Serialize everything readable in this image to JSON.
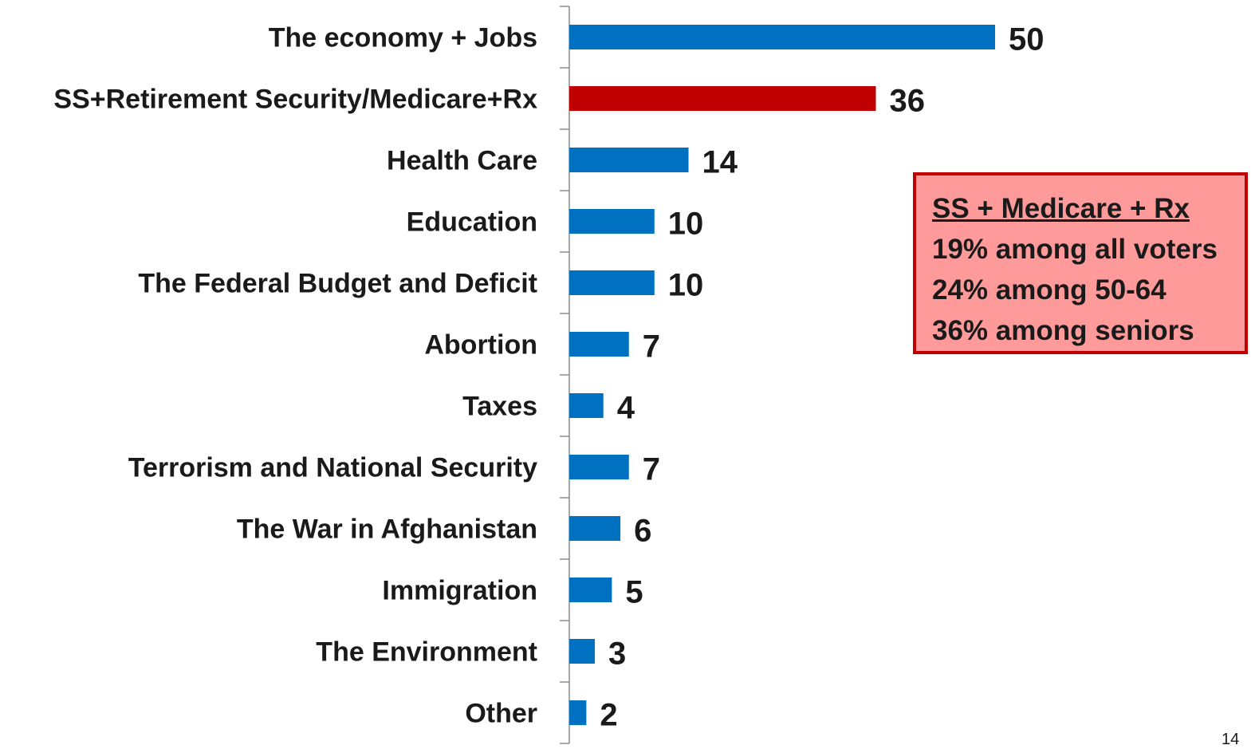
{
  "chart_data": {
    "type": "bar",
    "orientation": "horizontal",
    "categories": [
      "The economy + Jobs",
      "SS+Retirement Security/Medicare+Rx",
      "Health Care",
      "Education",
      "The Federal Budget and Deficit",
      "Abortion",
      "Taxes",
      "Terrorism and National Security",
      "The War in Afghanistan",
      "Immigration",
      "The Environment",
      "Other"
    ],
    "values": [
      50,
      36,
      14,
      10,
      10,
      7,
      4,
      7,
      6,
      5,
      3,
      2
    ],
    "bar_colors": [
      "#0070c0",
      "#c00000",
      "#0070c0",
      "#0070c0",
      "#0070c0",
      "#0070c0",
      "#0070c0",
      "#0070c0",
      "#0070c0",
      "#0070c0",
      "#0070c0",
      "#0070c0"
    ],
    "highlight_color": "#c00000",
    "default_color": "#0070c0",
    "title": "",
    "xlabel": "",
    "ylabel": "",
    "xlim": [
      0,
      100
    ],
    "grid": false,
    "legend": "none"
  },
  "callout": {
    "title": "SS + Medicare + Rx",
    "lines": [
      "19% among all voters",
      "24% among 50-64",
      "36% among seniors"
    ],
    "background": "#ff9a9a",
    "border": "#c00000"
  },
  "page_number": "14"
}
